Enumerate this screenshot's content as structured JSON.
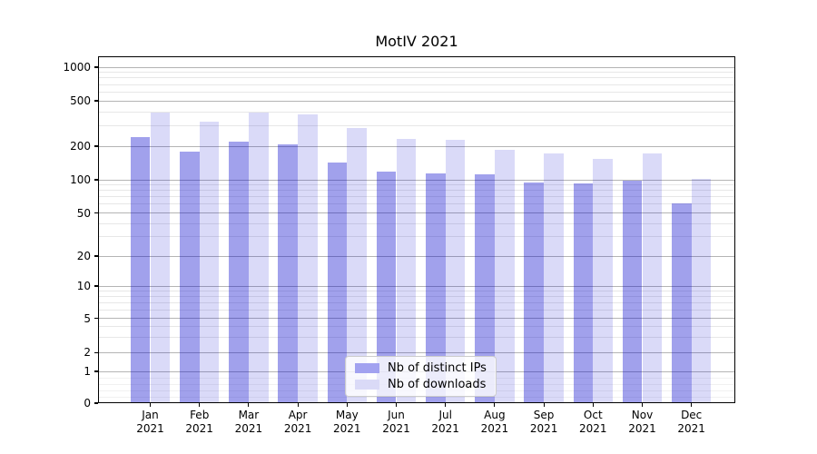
{
  "chart_data": {
    "type": "bar",
    "title": "MotIV 2021",
    "categories": [
      "Jan",
      "Feb",
      "Mar",
      "Apr",
      "May",
      "Jun",
      "Jul",
      "Aug",
      "Sep",
      "Oct",
      "Nov",
      "Dec"
    ],
    "category_year": "2021",
    "series": [
      {
        "name": "Nb of distinct IPs",
        "color": "rgba(0,0,204,0.37)",
        "solid_color": "#a2a2f0",
        "values": [
          240,
          180,
          220,
          207,
          142,
          118,
          114,
          111,
          94,
          93,
          98,
          61
        ]
      },
      {
        "name": "Nb of downloads",
        "color": "rgba(0,0,204,0.145)",
        "solid_color": "#dadaf7",
        "values": [
          395,
          330,
          395,
          380,
          290,
          230,
          226,
          186,
          173,
          155,
          172,
          102
        ]
      }
    ],
    "yscale": "symlog",
    "yticks": [
      0,
      1,
      2,
      5,
      10,
      20,
      50,
      100,
      200,
      500,
      1000
    ],
    "ylim": [
      0,
      1250
    ],
    "xlabel": "",
    "ylabel": "",
    "grid": "on",
    "legend_position": "lower-center",
    "grid_major_color": "#b4b4b4",
    "grid_minor_color": "#e7e7e7",
    "axis_color": "#000000"
  }
}
